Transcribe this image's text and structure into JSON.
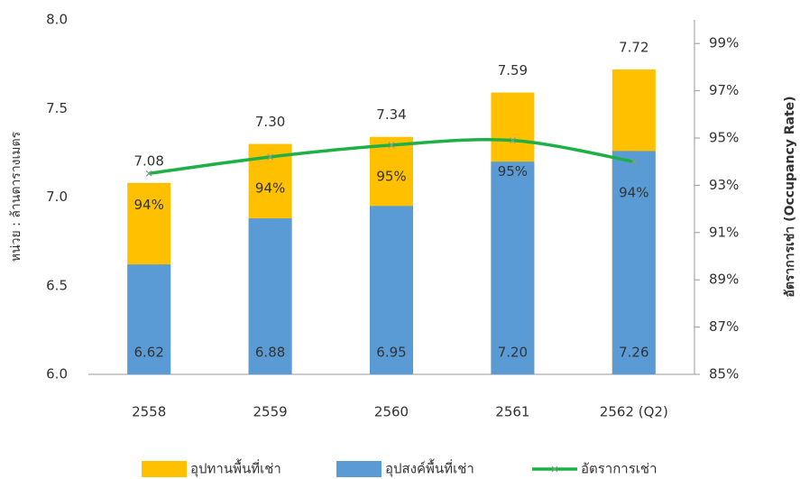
{
  "chart_data": {
    "type": "bar-line",
    "categories": [
      "2558",
      "2559",
      "2560",
      "2561",
      "2562 (Q2)"
    ],
    "series": [
      {
        "name": "อุปทานพื้นที่เช่า",
        "color": "#FFC000",
        "values": [
          7.08,
          7.3,
          7.34,
          7.59,
          7.72
        ],
        "value_labels": [
          "7.08",
          "7.30",
          "7.34",
          "7.59",
          "7.72"
        ]
      },
      {
        "name": "อุปสงค์พื้นที่เช่า",
        "color": "#5B9BD5",
        "values": [
          6.62,
          6.88,
          6.95,
          7.2,
          7.26
        ],
        "value_labels": [
          "6.62",
          "6.88",
          "6.95",
          "7.20",
          "7.26"
        ]
      },
      {
        "name": "อัตราการเช่า",
        "color": "#1DB045",
        "axis": "y2",
        "values": [
          93.5,
          94.2,
          94.7,
          94.9,
          94.0
        ],
        "value_labels": [
          "94%",
          "94%",
          "95%",
          "95%",
          "94%"
        ]
      }
    ],
    "ylabel": "หน่วย : ล้านตารางเมตร",
    "y2label": "อัตราการเช่า (Occupancy Rate)",
    "ylim": [
      6.0,
      8.0
    ],
    "yticks": [
      {
        "value": 6.0,
        "label": "6.0"
      },
      {
        "value": 6.5,
        "label": "6.5"
      },
      {
        "value": 7.0,
        "label": "7.0"
      },
      {
        "value": 7.5,
        "label": "7.5"
      },
      {
        "value": 8.0,
        "label": "8.0"
      }
    ],
    "y2lim": [
      85,
      100
    ],
    "y2ticks": [
      {
        "value": 85,
        "label": "85%"
      },
      {
        "value": 87,
        "label": "87%"
      },
      {
        "value": 89,
        "label": "89%"
      },
      {
        "value": 91,
        "label": "91%"
      },
      {
        "value": 93,
        "label": "93%"
      },
      {
        "value": 95,
        "label": "95%"
      },
      {
        "value": 97,
        "label": "97%"
      },
      {
        "value": 99,
        "label": "99%"
      }
    ],
    "legend": "bottom"
  }
}
